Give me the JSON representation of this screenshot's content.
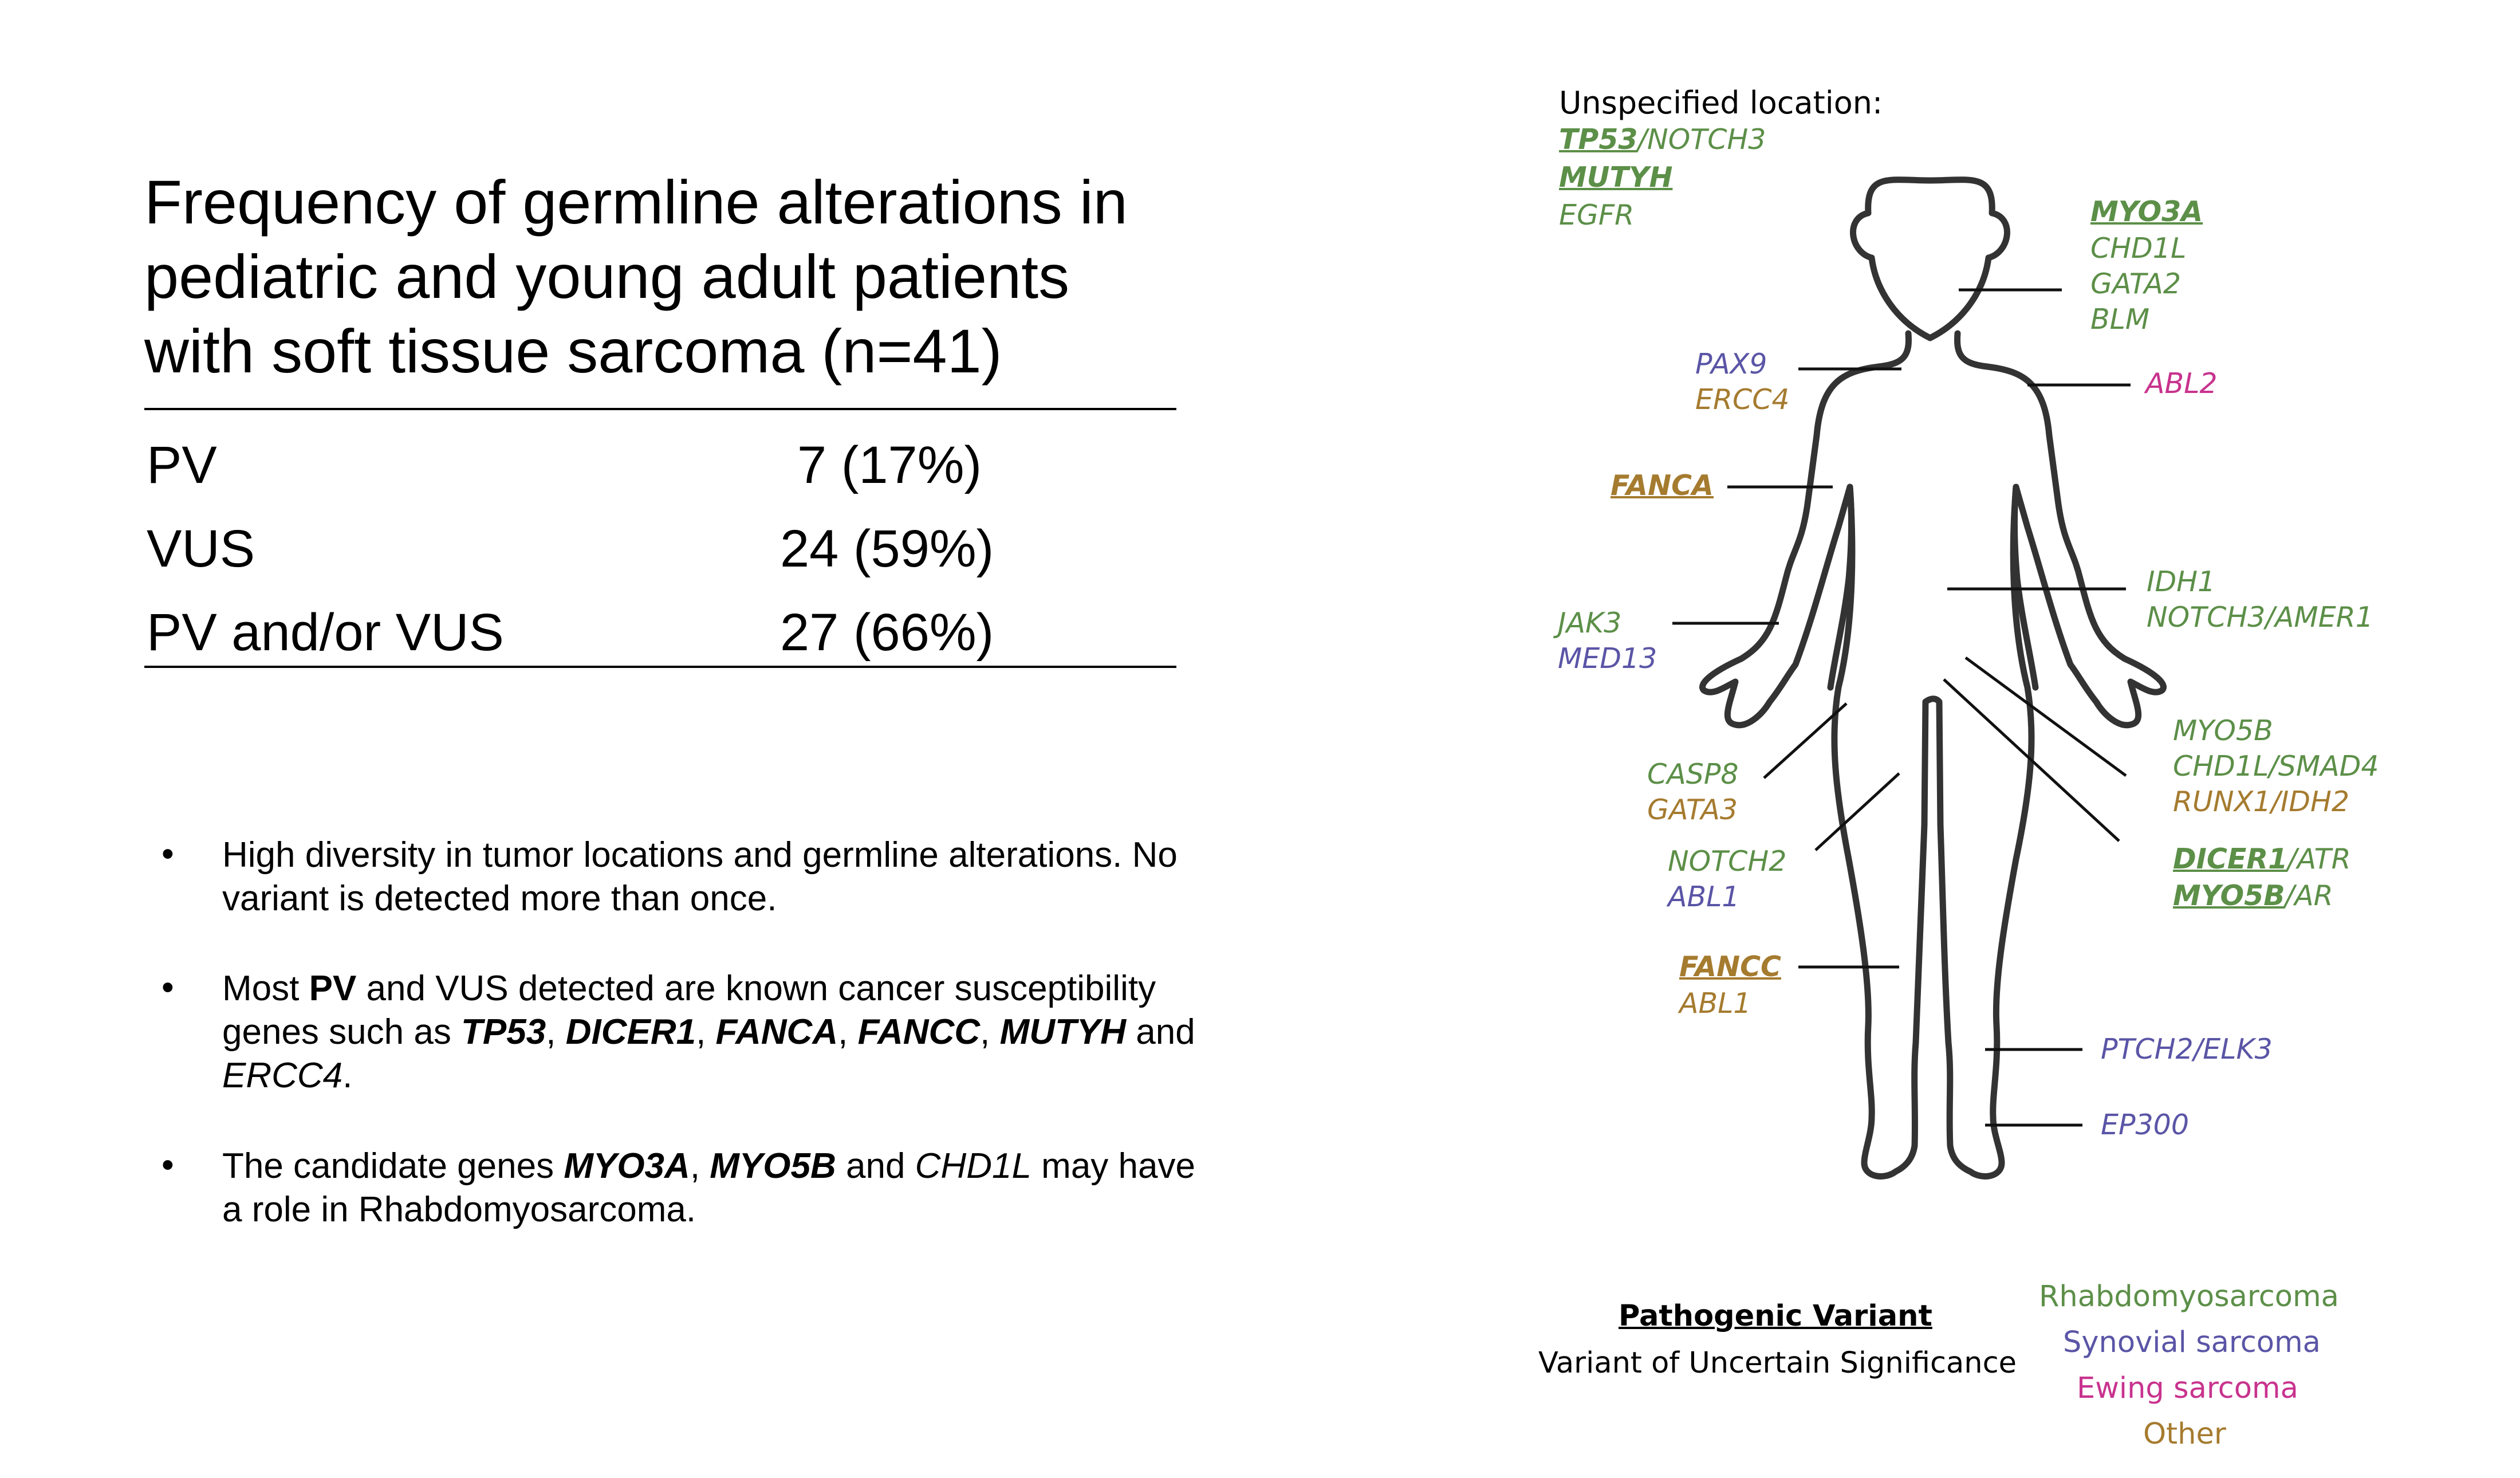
{
  "colors": {
    "rhabdo": "#5c8f48",
    "synovial": "#5a55a6",
    "ewing": "#c8338e",
    "other": "#a57b2f"
  },
  "title_lines": [
    "Frequency of germline alterations in",
    "pediatric and young adult patients",
    "with soft tissue sarcoma (n=41)"
  ],
  "table": [
    {
      "label": "PV",
      "value": "7 (17%)"
    },
    {
      "label": "VUS",
      "value": "24 (59%)"
    },
    {
      "label": "PV and/or VUS",
      "value": "27 (66%)"
    }
  ],
  "bullets": {
    "dot": "•",
    "b1": {
      "line1": "High diversity in tumor locations and germline alterations. No",
      "line2": "variant is detected more than once."
    },
    "b2": {
      "t1": "Most ",
      "t2": "PV",
      "t3": " and VUS detected are known cancer susceptibility",
      "t4": "genes such as ",
      "g1": "TP53",
      "c1": ", ",
      "g2": "DICER1",
      "c2": ", ",
      "g3": "FANCA",
      "c3": ", ",
      "g4": "FANCC",
      "c4": ", ",
      "g5": "MUTYH",
      "t5": " and",
      "g6": "ERCC4",
      "t6": "."
    },
    "b3": {
      "t1": "The candidate genes ",
      "g1": "MYO3A",
      "c1": ", ",
      "g2": "MYO5B",
      "t2": " and ",
      "g3": "CHD1L",
      "t3": " may have",
      "line2": "a role in Rhabdomyosarcoma."
    }
  },
  "diagram": {
    "unspecified": {
      "heading": "Unspecified location:",
      "l1a": "TP53",
      "l1sep": "/",
      "l1b": "NOTCH3",
      "l2": "MUTYH",
      "l3": "EGFR"
    },
    "head_right": [
      "MYO3A",
      "CHD1L",
      "GATA2",
      "BLM"
    ],
    "shoulder_left": [
      "PAX9",
      "ERCC4"
    ],
    "shoulder_right": "ABL2",
    "arm_left_upper": "FANCA",
    "torso_right": [
      "IDH1",
      "NOTCH3/AMER1"
    ],
    "arm_left_lower": [
      "JAK3",
      "MED13"
    ],
    "pelvis_right": [
      "MYO5B",
      "CHD1L/SMAD4",
      "RUNX1/IDH2"
    ],
    "pelvis_right_pv": {
      "a": "DICER1",
      "a2": "/ATR",
      "b": "MYO5B",
      "b2": "/AR"
    },
    "hand_left": [
      "CASP8",
      "GATA3"
    ],
    "thigh_left": [
      "NOTCH2",
      "ABL1"
    ],
    "knee_left": [
      "FANCC",
      "ABL1"
    ],
    "shin_right": "PTCH2/ELK3",
    "foot_right": "EP300"
  },
  "legend": {
    "pv": "Pathogenic Variant",
    "vus": "Variant of Uncertain Significance",
    "types": [
      "Rhabdomyosarcoma",
      "Synovial sarcoma",
      "Ewing sarcoma",
      "Other"
    ]
  }
}
